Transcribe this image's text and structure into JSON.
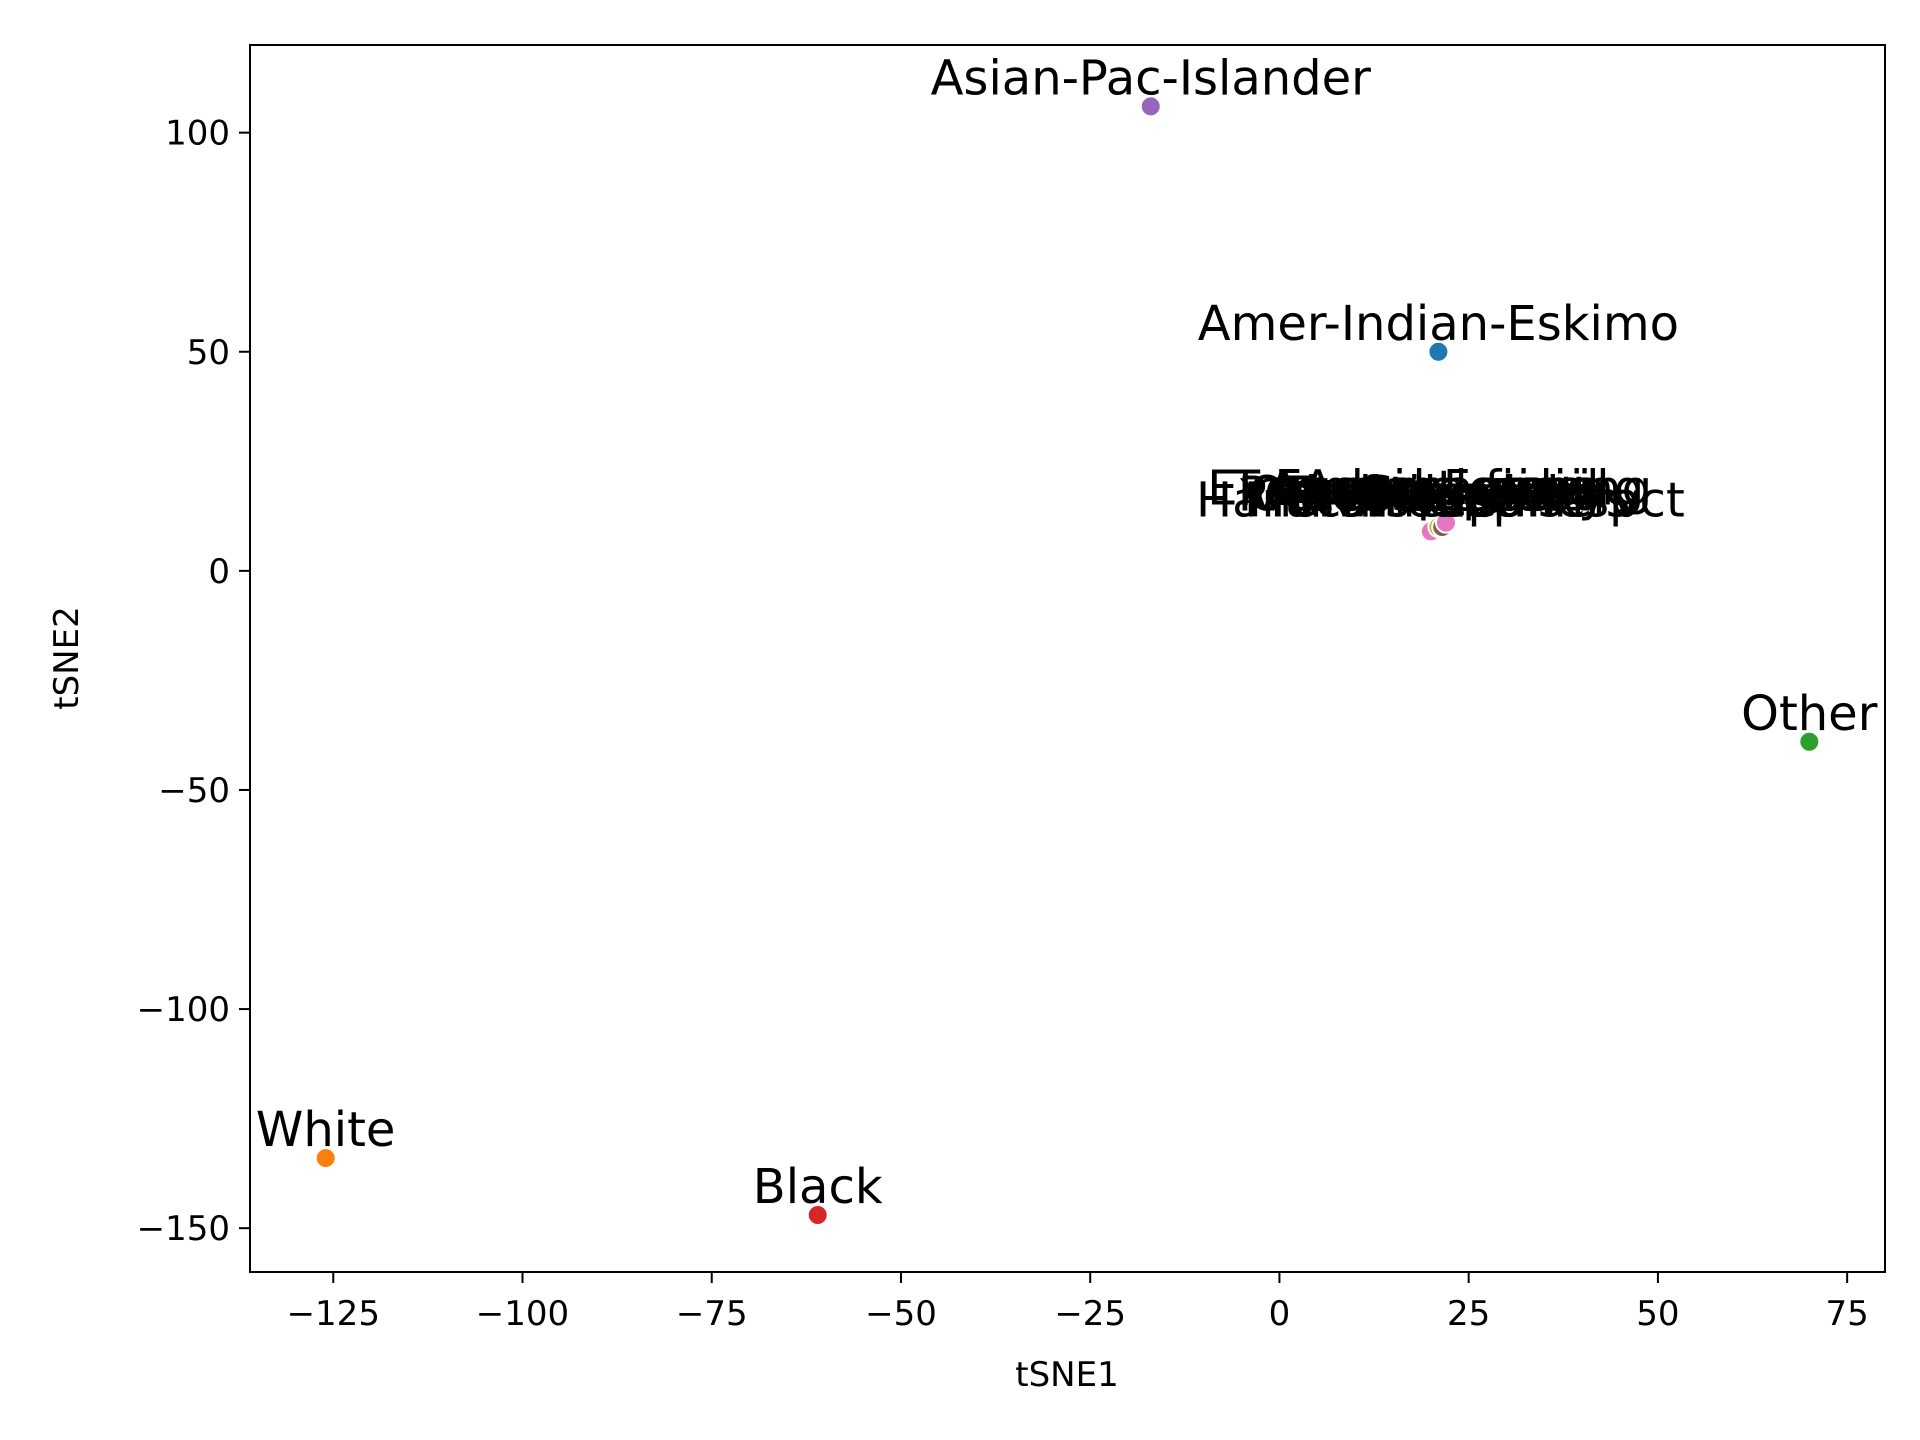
{
  "chart_data": {
    "type": "scatter",
    "title": "",
    "xlabel": "tSNE1",
    "ylabel": "tSNE2",
    "xlim": [
      -136,
      80
    ],
    "ylim": [
      -160,
      120
    ],
    "xticks": [
      -125,
      -100,
      -75,
      -50,
      -25,
      0,
      25,
      50,
      75
    ],
    "yticks": [
      -150,
      -100,
      -50,
      0,
      50,
      100
    ],
    "grid": false,
    "points": [
      {
        "label": "Asian-Pac-Islander",
        "x": -17,
        "y": 106,
        "color": "#9467bd"
      },
      {
        "label": "Amer-Indian-Eskimo",
        "x": 21,
        "y": 50,
        "color": "#1f77b4"
      },
      {
        "label": "Other",
        "x": 70,
        "y": -39,
        "color": "#2ca02c"
      },
      {
        "label": "White",
        "x": -126,
        "y": -134,
        "color": "#ff7f0e"
      },
      {
        "label": "Black",
        "x": -61,
        "y": -147,
        "color": "#d62728"
      }
    ],
    "cluster": {
      "labels": [
        "Exec-managerial",
        "Prof-specialty",
        "Craft-repair",
        "Farming-fishing",
        "Tech-support",
        "Handlers-cleaners",
        "Adm-clerical",
        "Sales",
        "Machine-op-inspct",
        "Transport-moving",
        "Protective-serv",
        "Priv-house-serv",
        "Armed-Forces",
        "Other-service"
      ],
      "points": [
        {
          "x": 20,
          "y": 9,
          "color": "#e377c2"
        },
        {
          "x": 21,
          "y": 10,
          "color": "#bcbd22"
        },
        {
          "x": 22,
          "y": 11,
          "color": "#17becf"
        },
        {
          "x": 21.5,
          "y": 10,
          "color": "#8c564b"
        },
        {
          "x": 22,
          "y": 11,
          "color": "#e377c2"
        }
      ]
    }
  }
}
